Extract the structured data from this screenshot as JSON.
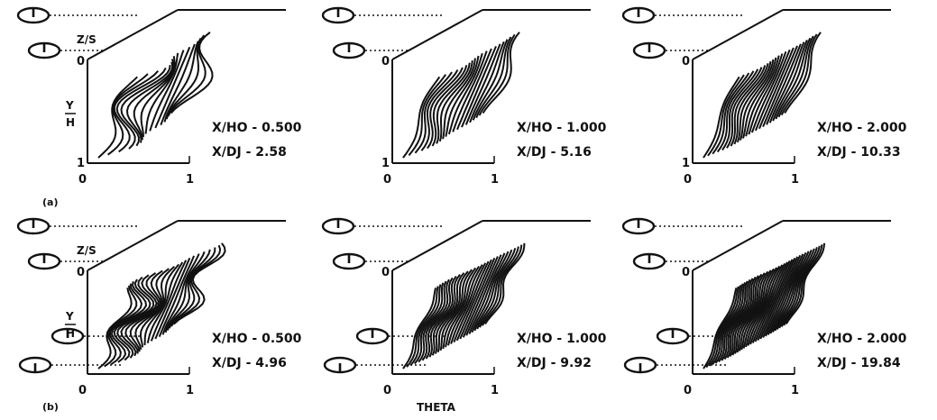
{
  "figure": {
    "row_labels": [
      "(a)",
      "(b)"
    ],
    "bottom_label": "THETA",
    "z_label": "Z/S",
    "y_label_top": "Y",
    "y_label_bottom": "H",
    "axis_zero": "0",
    "axis_one": "1"
  },
  "chart_data": [
    {
      "type": "line",
      "row": "(a)",
      "xlabel": "",
      "ylabel": "Y/H",
      "x_tick_labels": [
        "0",
        "1"
      ],
      "y_tick_labels": [
        "0",
        "1"
      ],
      "depth_label": "Z/S",
      "annotations": [
        "X/HO - 0.500",
        "X/DJ - 2.58"
      ],
      "xlim": [
        0,
        1
      ],
      "ylim": [
        0,
        1
      ],
      "grid": false
    },
    {
      "type": "line",
      "row": "(a)",
      "xlabel": "",
      "ylabel": "",
      "x_tick_labels": [
        "0",
        "1"
      ],
      "y_tick_labels": [
        "0",
        "1"
      ],
      "annotations": [
        "X/HO - 1.000",
        "X/DJ - 5.16"
      ],
      "xlim": [
        0,
        1
      ],
      "ylim": [
        0,
        1
      ],
      "grid": false
    },
    {
      "type": "line",
      "row": "(a)",
      "xlabel": "",
      "ylabel": "",
      "x_tick_labels": [
        "0",
        "1"
      ],
      "y_tick_labels": [
        "0",
        "1"
      ],
      "annotations": [
        "X/HO - 2.000",
        "X/DJ - 10.33"
      ],
      "xlim": [
        0,
        1
      ],
      "ylim": [
        0,
        1
      ],
      "grid": false
    },
    {
      "type": "line",
      "row": "(b)",
      "xlabel": "",
      "ylabel": "Y/H",
      "x_tick_labels": [
        "0",
        "1"
      ],
      "y_tick_labels": [
        "0"
      ],
      "depth_label": "Z/S",
      "annotations": [
        "X/HO - 0.500",
        "X/DJ - 4.96"
      ],
      "xlim": [
        0,
        1
      ],
      "ylim": [
        0,
        1
      ],
      "grid": false
    },
    {
      "type": "line",
      "row": "(b)",
      "xlabel": "THETA",
      "ylabel": "",
      "x_tick_labels": [
        "0",
        "1"
      ],
      "y_tick_labels": [
        "0"
      ],
      "annotations": [
        "X/HO - 1.000",
        "X/DJ - 9.92"
      ],
      "xlim": [
        0,
        1
      ],
      "ylim": [
        0,
        1
      ],
      "grid": false
    },
    {
      "type": "line",
      "row": "(b)",
      "xlabel": "",
      "ylabel": "",
      "x_tick_labels": [
        "0",
        "1"
      ],
      "y_tick_labels": [
        "0"
      ],
      "annotations": [
        "X/HO - 2.000",
        "X/DJ - 19.84"
      ],
      "xlim": [
        0,
        1
      ],
      "ylim": [
        0,
        1
      ],
      "grid": false
    }
  ]
}
